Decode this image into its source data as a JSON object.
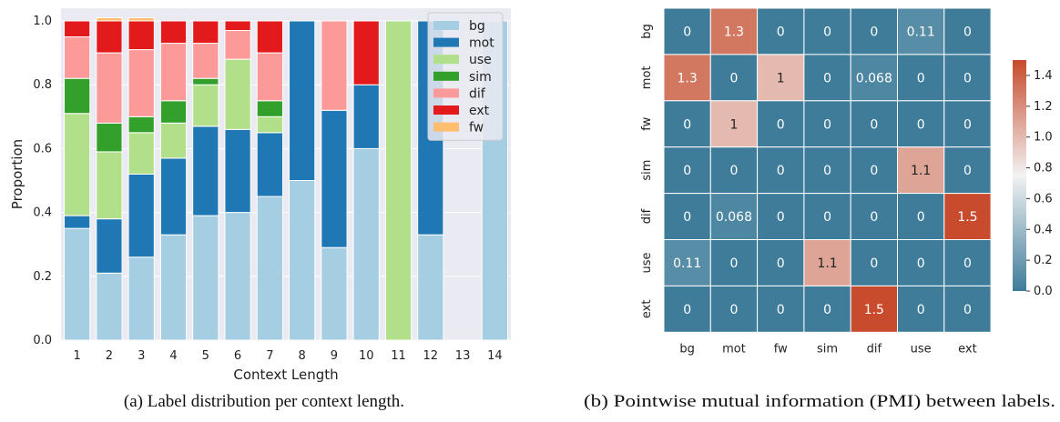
{
  "captions": {
    "a": "(a) Label distribution per context length.",
    "b": "(b) Pointwise mutual information (PMI) between labels."
  },
  "chart_data": [
    {
      "type": "bar",
      "stacked": true,
      "xlabel": "Context Length",
      "ylabel": "Proportion",
      "categories": [
        "1",
        "2",
        "3",
        "4",
        "5",
        "6",
        "7",
        "8",
        "9",
        "10",
        "11",
        "12",
        "13",
        "14"
      ],
      "ylim": [
        0,
        1.0
      ],
      "yticks": [
        "0.0",
        "0.2",
        "0.4",
        "0.6",
        "0.8",
        "1.0"
      ],
      "legend_position": "top-right",
      "series": [
        {
          "name": "bg",
          "color": "#a6cee3",
          "values": [
            0.35,
            0.21,
            0.26,
            0.33,
            0.39,
            0.4,
            0.45,
            0.5,
            0.29,
            0.6,
            0.0,
            0.33,
            0.0,
            1.0
          ]
        },
        {
          "name": "mot",
          "color": "#1f78b4",
          "values": [
            0.04,
            0.17,
            0.26,
            0.24,
            0.28,
            0.26,
            0.2,
            0.5,
            0.43,
            0.2,
            0.0,
            0.67,
            0.0,
            0.0
          ]
        },
        {
          "name": "use",
          "color": "#b2df8a",
          "values": [
            0.32,
            0.21,
            0.13,
            0.11,
            0.13,
            0.22,
            0.05,
            0.0,
            0.0,
            0.0,
            1.0,
            0.0,
            0.0,
            0.0
          ]
        },
        {
          "name": "sim",
          "color": "#33a02c",
          "values": [
            0.11,
            0.09,
            0.05,
            0.07,
            0.02,
            0.0,
            0.05,
            0.0,
            0.0,
            0.0,
            0.0,
            0.0,
            0.0,
            0.0
          ]
        },
        {
          "name": "dif",
          "color": "#fb9a99",
          "values": [
            0.13,
            0.22,
            0.21,
            0.18,
            0.11,
            0.09,
            0.15,
            0.0,
            0.28,
            0.0,
            0.0,
            0.0,
            0.0,
            0.0
          ]
        },
        {
          "name": "ext",
          "color": "#e31a1c",
          "values": [
            0.05,
            0.1,
            0.09,
            0.07,
            0.07,
            0.03,
            0.1,
            0.0,
            0.0,
            0.2,
            0.0,
            0.0,
            0.0,
            0.0
          ]
        },
        {
          "name": "fw",
          "color": "#fdbf6f",
          "values": [
            0.0,
            0.01,
            0.01,
            0.0,
            0.0,
            0.0,
            0.0,
            0.0,
            0.0,
            0.0,
            0.0,
            0.0,
            0.0,
            0.0
          ]
        }
      ]
    },
    {
      "type": "heatmap",
      "rows": [
        "bg",
        "mot",
        "fw",
        "sim",
        "dif",
        "use",
        "ext"
      ],
      "columns": [
        "bg",
        "mot",
        "fw",
        "sim",
        "dif",
        "use",
        "ext"
      ],
      "values": [
        [
          0,
          1.3,
          0,
          0,
          0,
          0.11,
          0
        ],
        [
          1.3,
          0,
          1,
          0,
          0.068,
          0,
          0
        ],
        [
          0,
          1,
          0,
          0,
          0,
          0,
          0
        ],
        [
          0,
          0,
          0,
          0,
          0,
          1.1,
          0
        ],
        [
          0,
          0.068,
          0,
          0,
          0,
          0,
          1.5
        ],
        [
          0.11,
          0,
          0,
          1.1,
          0,
          0,
          0
        ],
        [
          0,
          0,
          0,
          0,
          1.5,
          0,
          0
        ]
      ],
      "labels": [
        [
          "0",
          "1.3",
          "0",
          "0",
          "0",
          "0.11",
          "0"
        ],
        [
          "1.3",
          "0",
          "1",
          "0",
          "0.068",
          "0",
          "0"
        ],
        [
          "0",
          "1",
          "0",
          "0",
          "0",
          "0",
          "0"
        ],
        [
          "0",
          "0",
          "0",
          "0",
          "0",
          "1.1",
          "0"
        ],
        [
          "0",
          "0.068",
          "0",
          "0",
          "0",
          "0",
          "1.5"
        ],
        [
          "0.11",
          "0",
          "0",
          "1.1",
          "0",
          "0",
          "0"
        ],
        [
          "0",
          "0",
          "0",
          "0",
          "1.5",
          "0",
          "0"
        ]
      ],
      "colorbar": {
        "range": [
          0,
          1.5
        ],
        "ticks": [
          "0.0",
          "0.2",
          "0.4",
          "0.6",
          "0.8",
          "1.0",
          "1.2",
          "1.4"
        ],
        "tick_values": [
          0,
          0.2,
          0.4,
          0.6,
          0.8,
          1.0,
          1.2,
          1.4
        ],
        "colors": [
          "#3e7c9a",
          "#f2f2f2",
          "#c74b2c"
        ]
      }
    }
  ]
}
